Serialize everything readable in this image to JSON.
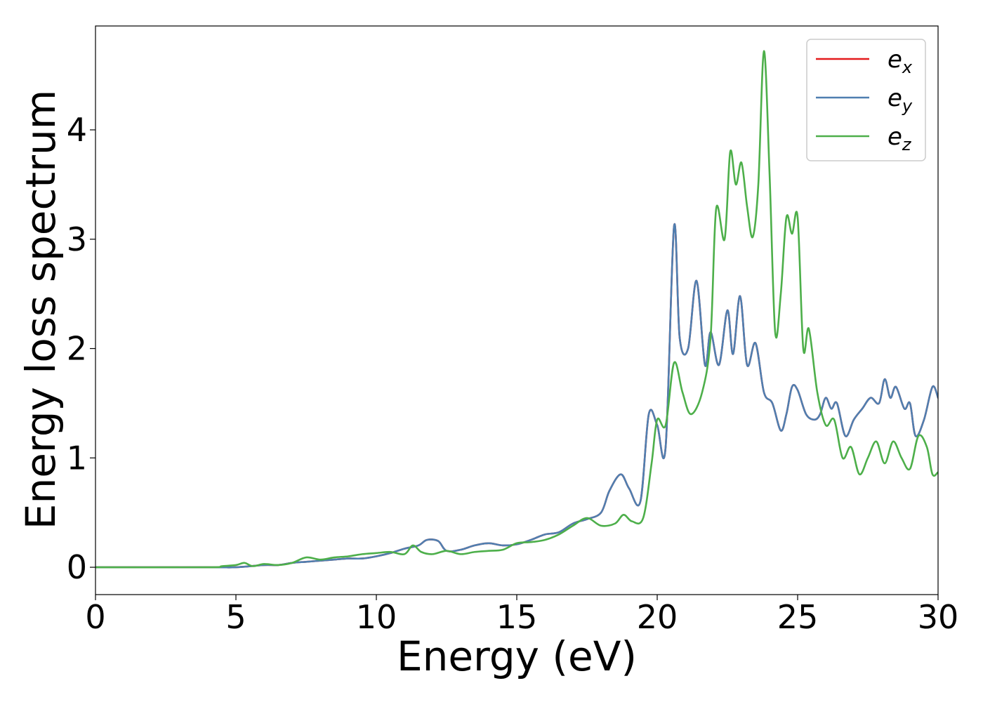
{
  "chart_data": {
    "type": "line",
    "xlabel": "Energy (eV)",
    "ylabel": "Energy loss spectrum",
    "xlim": [
      0,
      30
    ],
    "ylim": [
      -0.25,
      4.95
    ],
    "xticks": [
      "0",
      "5",
      "10",
      "15",
      "20",
      "25",
      "30"
    ],
    "yticks": [
      "0",
      "1",
      "2",
      "3",
      "4"
    ],
    "grid": false,
    "legend_position": "top-right",
    "series": [
      {
        "name": "e_x",
        "legend_base": "e",
        "legend_sub": "x",
        "color": "#e41a1c",
        "x": [
          0,
          4,
          5,
          6,
          6.5,
          7,
          7.5,
          8,
          8.5,
          9,
          9.5,
          10,
          10.5,
          11,
          11.5,
          11.8,
          12.2,
          12.5,
          13,
          13.5,
          14,
          14.5,
          15,
          15.5,
          16,
          16.5,
          17,
          17.5,
          18,
          18.3,
          18.7,
          19,
          19.4,
          19.7,
          20,
          20.3,
          20.6,
          20.8,
          21.1,
          21.4,
          21.7,
          21.9,
          22.2,
          22.5,
          22.7,
          22.95,
          23.2,
          23.5,
          23.8,
          24.1,
          24.4,
          24.6,
          24.8,
          25.0,
          25.3,
          25.6,
          25.8,
          26.0,
          26.2,
          26.4,
          26.7,
          27.0,
          27.3,
          27.6,
          27.9,
          28.1,
          28.3,
          28.5,
          28.8,
          29.0,
          29.2,
          29.5,
          29.8,
          30.0
        ],
        "y": [
          0,
          0,
          0.0,
          0.02,
          0.02,
          0.04,
          0.05,
          0.06,
          0.07,
          0.08,
          0.08,
          0.1,
          0.13,
          0.17,
          0.2,
          0.25,
          0.24,
          0.15,
          0.16,
          0.2,
          0.22,
          0.2,
          0.21,
          0.25,
          0.3,
          0.32,
          0.4,
          0.44,
          0.5,
          0.7,
          0.85,
          0.72,
          0.6,
          1.4,
          1.3,
          1.1,
          3.12,
          2.1,
          2.0,
          2.62,
          1.85,
          2.15,
          1.85,
          2.35,
          1.95,
          2.48,
          1.85,
          2.05,
          1.6,
          1.5,
          1.25,
          1.4,
          1.65,
          1.62,
          1.4,
          1.35,
          1.4,
          1.55,
          1.45,
          1.5,
          1.2,
          1.35,
          1.45,
          1.55,
          1.5,
          1.72,
          1.55,
          1.65,
          1.45,
          1.5,
          1.2,
          1.35,
          1.65,
          1.55
        ]
      },
      {
        "name": "e_y",
        "legend_base": "e",
        "legend_sub": "y",
        "color": "#4f7fb0",
        "x": [
          0,
          4,
          5,
          6,
          6.5,
          7,
          7.5,
          8,
          8.5,
          9,
          9.5,
          10,
          10.5,
          11,
          11.5,
          11.8,
          12.2,
          12.5,
          13,
          13.5,
          14,
          14.5,
          15,
          15.5,
          16,
          16.5,
          17,
          17.5,
          18,
          18.3,
          18.7,
          19,
          19.4,
          19.7,
          20,
          20.3,
          20.6,
          20.8,
          21.1,
          21.4,
          21.7,
          21.9,
          22.2,
          22.5,
          22.7,
          22.95,
          23.2,
          23.5,
          23.8,
          24.1,
          24.4,
          24.6,
          24.8,
          25.0,
          25.3,
          25.6,
          25.8,
          26.0,
          26.2,
          26.4,
          26.7,
          27.0,
          27.3,
          27.6,
          27.9,
          28.1,
          28.3,
          28.5,
          28.8,
          29.0,
          29.2,
          29.5,
          29.8,
          30.0
        ],
        "y": [
          0,
          0,
          0.0,
          0.02,
          0.02,
          0.04,
          0.05,
          0.06,
          0.07,
          0.08,
          0.08,
          0.1,
          0.13,
          0.17,
          0.2,
          0.25,
          0.24,
          0.15,
          0.16,
          0.2,
          0.22,
          0.2,
          0.21,
          0.25,
          0.3,
          0.32,
          0.4,
          0.44,
          0.5,
          0.7,
          0.85,
          0.72,
          0.6,
          1.4,
          1.3,
          1.1,
          3.12,
          2.1,
          2.0,
          2.62,
          1.85,
          2.15,
          1.85,
          2.35,
          1.95,
          2.48,
          1.85,
          2.05,
          1.6,
          1.5,
          1.25,
          1.4,
          1.65,
          1.62,
          1.4,
          1.35,
          1.4,
          1.55,
          1.45,
          1.5,
          1.2,
          1.35,
          1.45,
          1.55,
          1.5,
          1.72,
          1.55,
          1.65,
          1.45,
          1.5,
          1.2,
          1.35,
          1.65,
          1.55
        ]
      },
      {
        "name": "e_z",
        "legend_base": "e",
        "legend_sub": "z",
        "color": "#4daf4a",
        "x": [
          0,
          4,
          4.5,
          5,
          5.3,
          5.6,
          6,
          6.5,
          7,
          7.5,
          8,
          8.5,
          9,
          9.5,
          10,
          10.5,
          11,
          11.3,
          11.6,
          12,
          12.5,
          13,
          13.5,
          14,
          14.5,
          15,
          15.5,
          16,
          16.5,
          17,
          17.5,
          18,
          18.5,
          18.8,
          19.1,
          19.5,
          19.8,
          20.0,
          20.3,
          20.6,
          20.9,
          21.2,
          21.6,
          21.9,
          22.1,
          22.4,
          22.6,
          22.8,
          23.0,
          23.2,
          23.4,
          23.6,
          23.8,
          24.0,
          24.2,
          24.4,
          24.6,
          24.8,
          25.0,
          25.2,
          25.4,
          25.7,
          26.0,
          26.3,
          26.6,
          26.9,
          27.2,
          27.5,
          27.8,
          28.1,
          28.4,
          28.7,
          29.0,
          29.3,
          29.6,
          29.8,
          30.0
        ],
        "y": [
          0,
          0,
          0.01,
          0.02,
          0.04,
          0.01,
          0.03,
          0.02,
          0.04,
          0.09,
          0.07,
          0.09,
          0.1,
          0.12,
          0.13,
          0.14,
          0.12,
          0.2,
          0.14,
          0.12,
          0.15,
          0.12,
          0.14,
          0.15,
          0.16,
          0.22,
          0.23,
          0.25,
          0.3,
          0.38,
          0.45,
          0.38,
          0.4,
          0.48,
          0.42,
          0.45,
          0.95,
          1.35,
          1.3,
          1.87,
          1.6,
          1.4,
          1.6,
          2.1,
          3.28,
          3.0,
          3.8,
          3.5,
          3.7,
          3.3,
          3.02,
          3.5,
          4.72,
          3.6,
          2.15,
          2.5,
          3.2,
          3.05,
          3.2,
          2.0,
          2.18,
          1.6,
          1.3,
          1.35,
          1.0,
          1.1,
          0.85,
          1.0,
          1.15,
          0.95,
          1.15,
          1.0,
          0.9,
          1.2,
          1.1,
          0.85,
          0.87
        ]
      }
    ]
  }
}
